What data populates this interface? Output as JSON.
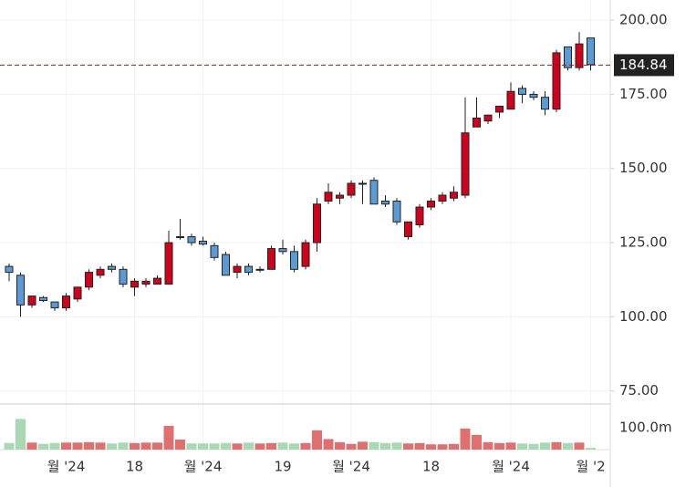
{
  "chart_data": {
    "type": "candlestick",
    "categories": [
      null,
      null,
      null,
      null,
      null,
      "월 '24",
      null,
      null,
      null,
      null,
      null,
      "18",
      null,
      null,
      null,
      null,
      null,
      "월 '24",
      null,
      null,
      null,
      null,
      null,
      null,
      "19",
      null,
      null,
      null,
      null,
      null,
      "월 '24",
      null,
      null,
      null,
      null,
      null,
      null,
      "18",
      null,
      null,
      null,
      null,
      null,
      null,
      "월 '24",
      null,
      null,
      null,
      null,
      null,
      null,
      "월 '2"
    ],
    "open": [
      117,
      114,
      104,
      106.5,
      105,
      103,
      106,
      110,
      114,
      117,
      116,
      110,
      111,
      111,
      111,
      127,
      127,
      125.5,
      124,
      121,
      115,
      117,
      116,
      116,
      123,
      122,
      117,
      125,
      139,
      140,
      141,
      145,
      146,
      139,
      139,
      127,
      131,
      137,
      139,
      140,
      141,
      164,
      166,
      169,
      170,
      177,
      175,
      174,
      170,
      191,
      184,
      194
    ],
    "high": [
      118,
      115,
      107,
      107,
      105,
      108,
      110,
      116,
      117,
      118,
      117,
      113,
      113,
      114,
      129,
      133,
      128,
      127,
      125,
      122,
      118,
      118,
      117,
      124,
      126,
      124,
      126,
      140,
      145,
      142,
      146,
      146,
      147,
      141,
      140,
      132,
      138,
      140,
      142,
      144,
      174,
      174,
      168,
      171,
      179,
      178,
      176,
      176,
      190,
      191,
      196,
      194
    ],
    "low": [
      112,
      100,
      103,
      105,
      102,
      102,
      105,
      109,
      113,
      115,
      110,
      107,
      110,
      111,
      111,
      126,
      124,
      124,
      119,
      114,
      113,
      114,
      115,
      116,
      121,
      115,
      116,
      122,
      138,
      138,
      140,
      138,
      138,
      137,
      131,
      126,
      130,
      136,
      138,
      139,
      140,
      164,
      165,
      167,
      170,
      172,
      173,
      168,
      169,
      183,
      183,
      183
    ],
    "close": [
      115,
      104,
      107,
      105.5,
      103,
      107,
      110,
      115,
      116,
      116,
      111,
      112,
      112,
      113,
      125,
      127,
      125,
      124.5,
      120,
      114,
      117,
      115,
      116,
      123,
      122,
      116,
      125,
      138,
      142,
      141,
      145,
      145,
      138,
      138,
      132,
      132,
      137,
      139,
      141,
      142,
      162,
      167,
      168,
      171,
      176,
      175,
      174,
      170,
      189,
      184,
      192,
      185
    ],
    "volume": [
      30,
      140,
      32,
      26,
      30,
      32,
      32,
      34,
      32,
      28,
      32,
      30,
      32,
      32,
      108,
      46,
      28,
      28,
      28,
      30,
      28,
      32,
      28,
      30,
      32,
      28,
      30,
      88,
      48,
      34,
      26,
      36,
      34,
      30,
      32,
      28,
      30,
      24,
      24,
      26,
      96,
      67,
      34,
      30,
      32,
      28,
      26,
      32,
      34,
      30,
      32,
      8
    ],
    "up_color": "#d0021b",
    "down_color": "#5b9bd5",
    "volume_up_color": "#e07070",
    "volume_down_color": "#a8d8b4",
    "ylim": [
      70.6,
      206.8
    ],
    "yticks": [
      {
        "value": 200,
        "label": "200.00"
      },
      {
        "value": 175,
        "label": "175.00"
      },
      {
        "value": 150,
        "label": "150.00"
      },
      {
        "value": 125,
        "label": "125.00"
      },
      {
        "value": 100,
        "label": "100.00"
      },
      {
        "value": 75,
        "label": "75.00"
      }
    ],
    "vlim": [
      0,
      208
    ],
    "vticks": [
      {
        "value": 100,
        "label": "100.0m"
      }
    ],
    "last_price": {
      "value": 184.84,
      "label": "184.84"
    },
    "grid": true
  }
}
